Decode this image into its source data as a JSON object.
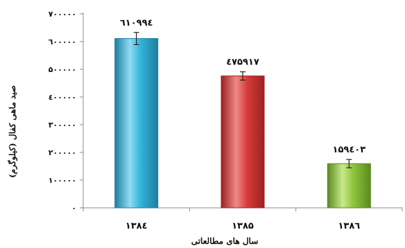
{
  "chart_data": {
    "type": "bar",
    "title": "",
    "xlabel": "سال های مطالعاتی",
    "ylabel": "صید ماهی کفال (کیلوگرم)",
    "categories": [
      "۱۳۸٤",
      "۱۳۸۵",
      "۱۳۸٦"
    ],
    "values": [
      610994,
      475917,
      159403
    ],
    "value_labels": [
      "٦۱۰۹۹٤",
      "٤۷۵۹۱۷",
      "۱۵۹٤۰۳"
    ],
    "error_bars": [
      22000,
      15000,
      15000
    ],
    "ylim": [
      0,
      700000
    ],
    "yticks": [
      0,
      100000,
      200000,
      300000,
      400000,
      500000,
      600000,
      700000
    ],
    "ytick_labels": [
      "۰",
      "۱۰۰۰۰۰",
      "۲۰۰۰۰۰",
      "۳۰۰۰۰۰",
      "٤۰۰۰۰۰",
      "۵۰۰۰۰۰",
      "٦۰۰۰۰۰",
      "۷۰۰۰۰۰"
    ],
    "grid": false,
    "legend": "none",
    "colors": [
      "#31b3d8",
      "#d63c3a",
      "#8dc43c"
    ],
    "color_dark": [
      "#1e7ea0",
      "#9c2220",
      "#5b8a1f"
    ],
    "color_light": [
      "#8fdcf2",
      "#f08a86",
      "#c8ea8b"
    ]
  }
}
